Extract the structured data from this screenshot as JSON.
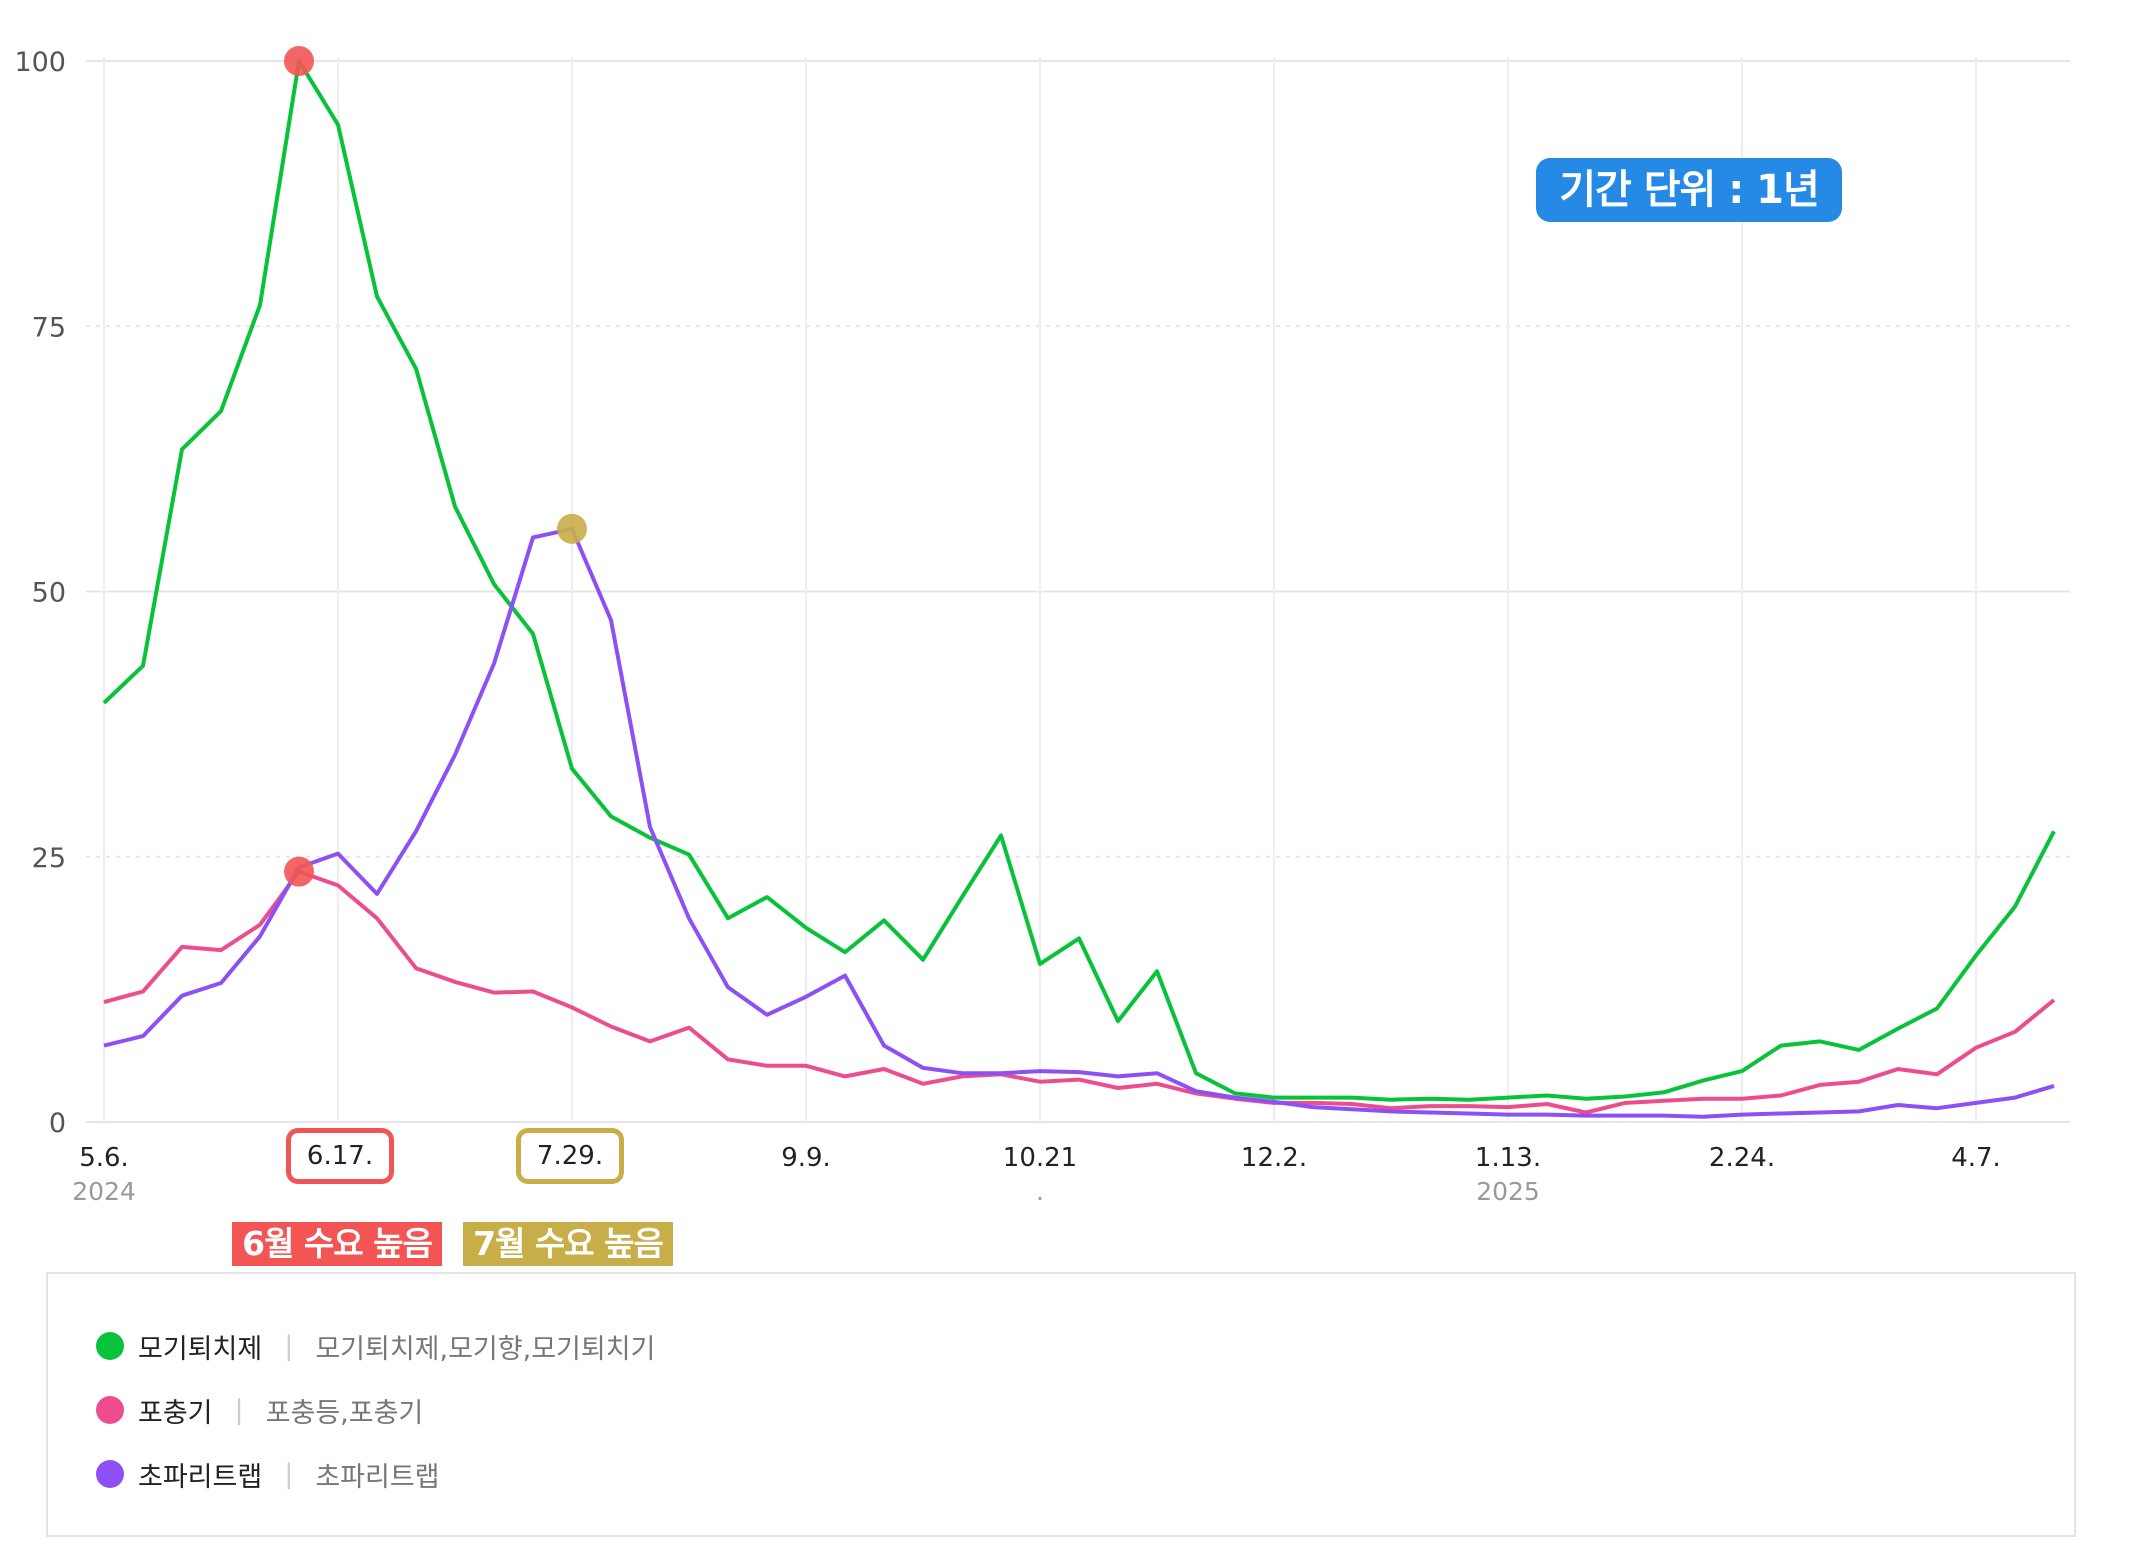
{
  "badge": {
    "period_label": "기간 단위 : 1년"
  },
  "highlights": [
    {
      "tick": "6.17.",
      "note": "6월 수요 높음",
      "color": "#f35555"
    },
    {
      "tick": "7.29.",
      "note": "7월 수요 높음",
      "color": "#c8ae48"
    }
  ],
  "legend": [
    {
      "name": "모기퇴치제",
      "keywords": "모기퇴치제,모기향,모기퇴치기",
      "color": "#08c23a",
      "separator": "|"
    },
    {
      "name": "포충기",
      "keywords": "포충등,포충기",
      "color": "#ec4d8d",
      "separator": "|"
    },
    {
      "name": "초파리트랩",
      "keywords": "초파리트랩",
      "color": "#8c50f5",
      "separator": "|"
    }
  ],
  "chart_data": {
    "type": "line",
    "title": "",
    "xlabel": "",
    "ylabel": "",
    "ylim": [
      0,
      100
    ],
    "yticks": [
      0,
      25,
      50,
      75,
      100
    ],
    "ytick_labels": [
      "0",
      "25",
      "50",
      "75",
      "100"
    ],
    "x_tick_labels": [
      {
        "index": 0,
        "label": "5.6.",
        "sub": "2024"
      },
      {
        "index": 6,
        "label": "6.17.",
        "sub": ""
      },
      {
        "index": 12,
        "label": "7.29.",
        "sub": ""
      },
      {
        "index": 18,
        "label": "9.9.",
        "sub": ""
      },
      {
        "index": 24,
        "label": "10.21",
        "sub": "."
      },
      {
        "index": 30,
        "label": "12.2.",
        "sub": ""
      },
      {
        "index": 36,
        "label": "1.13.",
        "sub": "2025"
      },
      {
        "index": 42,
        "label": "2.24.",
        "sub": ""
      },
      {
        "index": 48,
        "label": "4.7.",
        "sub": ""
      }
    ],
    "x_interval": "weekly",
    "grid": true,
    "legend_position": "bottom",
    "series": [
      {
        "name": "모기퇴치제",
        "color": "#08c23a",
        "values": [
          39.5,
          43,
          63.4,
          67,
          77,
          100,
          94,
          77.8,
          71,
          58,
          50.7,
          46,
          33.3,
          28.8,
          26.8,
          25.2,
          19.2,
          21.2,
          18.3,
          16,
          19,
          15.3,
          21.2,
          27,
          14.9,
          17.3,
          9.5,
          14.2,
          4.6,
          2.7,
          2.3,
          2.3,
          2.3,
          2.1,
          2.2,
          2.1,
          2.3,
          2.5,
          2.2,
          2.4,
          2.8,
          3.9,
          4.8,
          7.2,
          7.6,
          6.8,
          8.8,
          10.7,
          15.7,
          20.3,
          27.4
        ]
      },
      {
        "name": "포충기",
        "color": "#ec4d8d",
        "values": [
          11.3,
          12.3,
          16.5,
          16.2,
          18.6,
          23.6,
          22.3,
          19.2,
          14.5,
          13.2,
          12.2,
          12.3,
          10.8,
          9.0,
          7.6,
          8.9,
          5.9,
          5.3,
          5.3,
          4.3,
          5.0,
          3.6,
          4.3,
          4.5,
          3.8,
          4.0,
          3.2,
          3.6,
          2.7,
          2.2,
          1.8,
          1.8,
          1.7,
          1.3,
          1.5,
          1.5,
          1.4,
          1.7,
          0.9,
          1.8,
          2.0,
          2.2,
          2.2,
          2.5,
          3.5,
          3.8,
          5.0,
          4.5,
          7.0,
          8.5,
          11.5
        ]
      },
      {
        "name": "초파리트랩",
        "color": "#8c50f5",
        "values": [
          7.2,
          8.1,
          11.9,
          13.1,
          17.5,
          24.0,
          25.3,
          21.5,
          27.4,
          34.6,
          43.2,
          55.1,
          55.9,
          47.3,
          27.8,
          19.2,
          12.7,
          10.1,
          11.8,
          13.8,
          7.2,
          5.1,
          4.6,
          4.6,
          4.8,
          4.7,
          4.3,
          4.6,
          2.9,
          2.3,
          1.9,
          1.4,
          1.2,
          1.0,
          0.9,
          0.8,
          0.7,
          0.7,
          0.6,
          0.6,
          0.6,
          0.5,
          0.7,
          0.8,
          0.9,
          1.0,
          1.6,
          1.3,
          1.8,
          2.3,
          3.4
        ]
      }
    ],
    "annotations": [
      {
        "series": "모기퇴치제",
        "index": 5,
        "value": 100,
        "marker_color": "#f35555"
      },
      {
        "series": "포충기",
        "index": 5,
        "value": 23.6,
        "marker_color": "#f35555"
      },
      {
        "series": "초파리트랩",
        "index": 12,
        "value": 55.9,
        "marker_color": "#c8ae48"
      }
    ]
  }
}
